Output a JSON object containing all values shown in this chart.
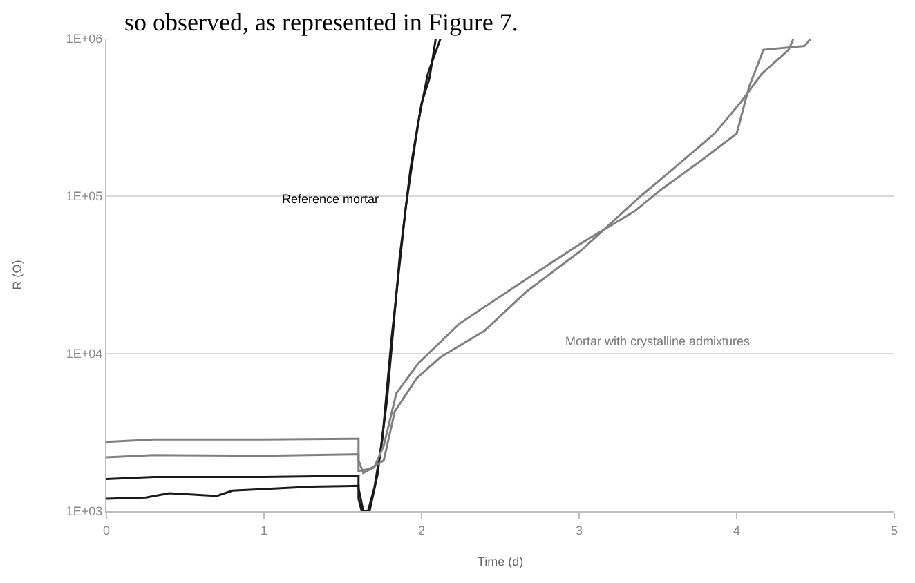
{
  "chart_data": {
    "type": "line",
    "xlabel": "Time (d)",
    "ylabel": "R (Ω)",
    "log": "y",
    "xlim": [
      0,
      5
    ],
    "xticks": [
      0,
      1,
      2,
      3,
      4,
      5
    ],
    "ylim": [
      1000,
      1000000
    ],
    "yticks": [
      {
        "value": 1000,
        "label": "1E+03"
      },
      {
        "value": 10000,
        "label": "1E+04"
      },
      {
        "value": 100000,
        "label": "1E+05"
      },
      {
        "value": 1000000,
        "label": "1E+06"
      }
    ],
    "grid": "y",
    "marker": "none",
    "line_style": "solid",
    "series": [
      {
        "color": "#1a1a1a",
        "x": [
          0,
          0.3,
          1.0,
          1.6,
          1.6,
          1.63,
          1.66,
          1.7,
          1.75,
          1.81,
          1.9,
          1.96,
          2.0,
          2.05,
          2.09
        ],
        "values": [
          1600,
          1650,
          1650,
          1680,
          1400,
          1000,
          1000,
          1400,
          2800,
          12600,
          85000,
          220000,
          390000,
          560000,
          1000000
        ]
      },
      {
        "color": "#1a1a1a",
        "x": [
          0,
          0.25,
          0.4,
          0.7,
          0.8,
          1.0,
          1.3,
          1.6,
          1.6,
          1.62,
          1.67,
          1.72,
          1.78,
          1.86,
          1.93,
          1.98,
          2.04,
          2.12
        ],
        "values": [
          1200,
          1220,
          1300,
          1250,
          1350,
          1380,
          1430,
          1450,
          1200,
          1000,
          1000,
          1700,
          5000,
          40000,
          150000,
          300000,
          600000,
          1000000
        ]
      },
      {
        "color": "#808080",
        "x": [
          0,
          0.3,
          1.0,
          1.6,
          1.6,
          1.63,
          1.7,
          1.76,
          1.84,
          1.98,
          2.24,
          2.67,
          3.01,
          3.35,
          3.52,
          3.78,
          4.0,
          4.08,
          4.17,
          4.43,
          4.47
        ],
        "values": [
          2750,
          2850,
          2850,
          2880,
          2100,
          1750,
          1900,
          2600,
          5600,
          8700,
          15500,
          30000,
          50000,
          80000,
          110000,
          170000,
          250000,
          500000,
          850000,
          900000,
          1000000
        ]
      },
      {
        "color": "#808080",
        "x": [
          0,
          0.3,
          1.0,
          1.6,
          1.6,
          1.67,
          1.76,
          1.83,
          1.97,
          2.12,
          2.4,
          2.67,
          3.01,
          3.39,
          3.6,
          3.86,
          4.03,
          4.16,
          4.33,
          4.36
        ],
        "values": [
          2200,
          2270,
          2250,
          2300,
          1800,
          1850,
          2100,
          4300,
          7000,
          9500,
          14000,
          25000,
          45000,
          100000,
          150000,
          250000,
          400000,
          600000,
          850000,
          1000000
        ]
      }
    ],
    "annotations": [
      "so observed, as represented in Figure 7.",
      "Reference mortar",
      "Mortar with crystalline admixtures"
    ]
  }
}
